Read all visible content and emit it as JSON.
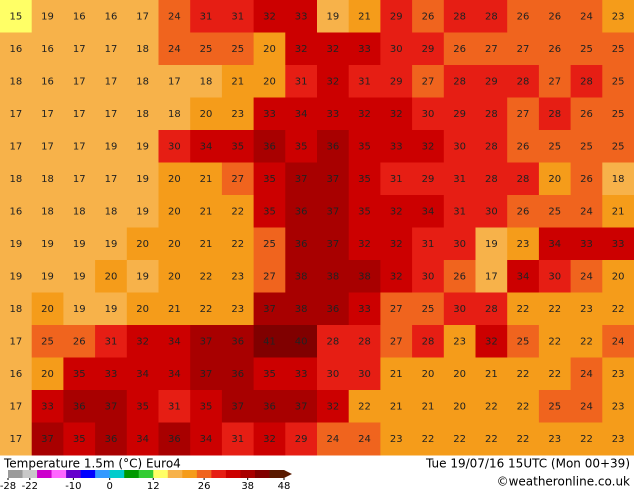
{
  "map": {
    "title": "Temperature 1.5m (°C) Euro4",
    "time": "Tue 19/07/16 15UTC (Mon 00+39)",
    "credit": "©weatheronline.co.uk",
    "rows": [
      [
        15,
        19,
        16,
        16,
        17,
        24,
        31,
        31,
        32,
        33,
        19,
        21,
        29,
        26,
        28,
        28,
        26,
        26,
        24,
        23
      ],
      [
        16,
        16,
        17,
        17,
        18,
        24,
        25,
        25,
        20,
        32,
        32,
        33,
        30,
        29,
        26,
        27,
        27,
        26,
        25,
        25
      ],
      [
        18,
        16,
        17,
        17,
        18,
        17,
        18,
        21,
        20,
        31,
        32,
        31,
        29,
        27,
        28,
        29,
        28,
        27,
        28,
        25
      ],
      [
        17,
        17,
        17,
        17,
        18,
        18,
        20,
        23,
        33,
        34,
        33,
        32,
        32,
        30,
        29,
        28,
        27,
        28,
        26,
        25
      ],
      [
        17,
        17,
        17,
        19,
        19,
        30,
        34,
        35,
        36,
        35,
        36,
        35,
        33,
        32,
        30,
        28,
        26,
        25,
        25,
        25
      ],
      [
        18,
        18,
        17,
        17,
        19,
        20,
        21,
        27,
        35,
        37,
        37,
        35,
        31,
        29,
        31,
        28,
        28,
        20,
        26,
        18
      ],
      [
        16,
        18,
        18,
        18,
        19,
        20,
        21,
        22,
        35,
        36,
        37,
        35,
        32,
        34,
        31,
        30,
        26,
        25,
        24,
        21
      ],
      [
        19,
        19,
        19,
        19,
        20,
        20,
        21,
        22,
        25,
        36,
        37,
        32,
        32,
        31,
        30,
        19,
        23,
        34,
        33,
        33
      ],
      [
        19,
        19,
        19,
        20,
        19,
        20,
        22,
        23,
        27,
        38,
        38,
        38,
        32,
        30,
        26,
        17,
        34,
        30,
        24,
        20
      ],
      [
        18,
        20,
        19,
        19,
        20,
        21,
        22,
        23,
        37,
        38,
        36,
        33,
        27,
        25,
        30,
        28,
        22,
        22,
        23,
        22
      ],
      [
        17,
        25,
        26,
        31,
        32,
        34,
        37,
        36,
        41,
        40,
        28,
        28,
        27,
        28,
        23,
        32,
        25,
        22,
        22,
        24
      ],
      [
        16,
        20,
        35,
        33,
        34,
        34,
        37,
        36,
        35,
        33,
        30,
        30,
        21,
        20,
        20,
        21,
        22,
        22,
        24,
        23
      ],
      [
        17,
        33,
        36,
        37,
        35,
        31,
        35,
        37,
        36,
        37,
        32,
        22,
        21,
        21,
        20,
        22,
        22,
        25,
        24,
        23
      ],
      [
        17,
        37,
        35,
        36,
        34,
        36,
        34,
        31,
        32,
        29,
        24,
        24,
        23,
        22,
        22,
        22,
        22,
        23,
        22,
        23
      ]
    ],
    "colorbar": {
      "lim": [
        -28,
        48
      ],
      "ticks": [
        -28,
        -22,
        -10,
        0,
        12,
        26,
        38,
        48
      ],
      "colors": [
        "#9a9a9a",
        "#c8c8c8",
        "#cc00cc",
        "#ff66ff",
        "#6600cc",
        "#0000ff",
        "#3399ff",
        "#00cccc",
        "#009900",
        "#33cc33",
        "#ffff66",
        "#f7b24a",
        "#f59c1a",
        "#f0641e",
        "#e61e14",
        "#cc0000",
        "#a80000",
        "#800000",
        "#5a1a00"
      ]
    }
  }
}
